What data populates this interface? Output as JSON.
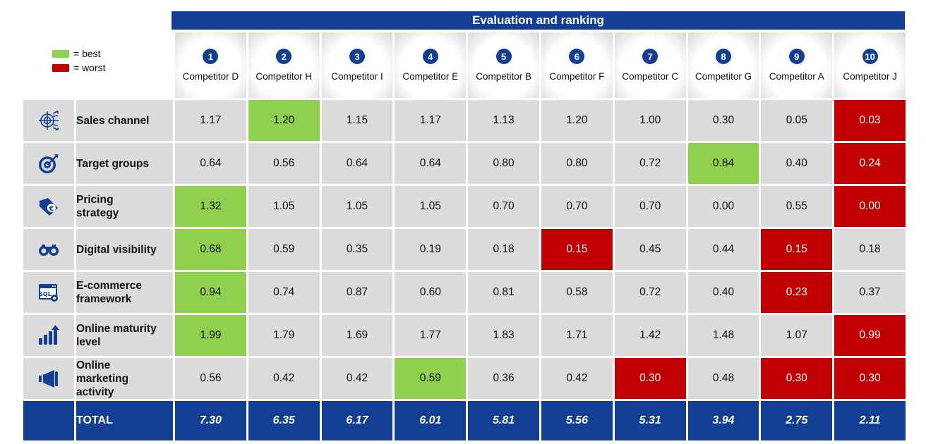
{
  "title": "Evaluation and ranking",
  "legend": {
    "best_label": "= best",
    "worst_label": "= worst",
    "best_color": "#8fd04f",
    "worst_color": "#c00000"
  },
  "colors": {
    "header_blue": "#123f94",
    "cell_gray": "#dcdcdc"
  },
  "chart_data": {
    "type": "table",
    "title": "Evaluation and ranking",
    "columns": [
      {
        "rank": "1",
        "name": "Competitor D"
      },
      {
        "rank": "2",
        "name": "Competitor H"
      },
      {
        "rank": "3",
        "name": "Competitor I"
      },
      {
        "rank": "4",
        "name": "Competitor E"
      },
      {
        "rank": "5",
        "name": "Competitor B"
      },
      {
        "rank": "6",
        "name": "Competitor F"
      },
      {
        "rank": "7",
        "name": "Competitor C"
      },
      {
        "rank": "8",
        "name": "Competitor G"
      },
      {
        "rank": "9",
        "name": "Competitor A"
      },
      {
        "rank": "10",
        "name": "Competitor J"
      }
    ],
    "rows": [
      {
        "label": "Sales channel",
        "icon": "crosshair-arrows-icon",
        "values": [
          "1.17",
          "1.20",
          "1.15",
          "1.17",
          "1.13",
          "1.20",
          "1.00",
          "0.30",
          "0.05",
          "0.03"
        ],
        "status": [
          "",
          "best",
          "",
          "",
          "",
          "",
          "",
          "",
          "",
          "worst"
        ]
      },
      {
        "label": "Target groups",
        "icon": "target-icon",
        "values": [
          "0.64",
          "0.56",
          "0.64",
          "0.64",
          "0.80",
          "0.80",
          "0.72",
          "0.84",
          "0.40",
          "0.24"
        ],
        "status": [
          "",
          "",
          "",
          "",
          "",
          "",
          "",
          "best",
          "",
          "worst"
        ]
      },
      {
        "label": "Pricing strategy",
        "icon": "euro-tag-icon",
        "values": [
          "1.32",
          "1.05",
          "1.05",
          "1.05",
          "0.70",
          "0.70",
          "0.70",
          "0.00",
          "0.55",
          "0.00"
        ],
        "status": [
          "best",
          "",
          "",
          "",
          "",
          "",
          "",
          "",
          "",
          "worst"
        ]
      },
      {
        "label": "Digital visibility",
        "icon": "binoculars-icon",
        "values": [
          "0.68",
          "0.59",
          "0.35",
          "0.19",
          "0.18",
          "0.15",
          "0.45",
          "0.44",
          "0.15",
          "0.18"
        ],
        "status": [
          "best",
          "",
          "",
          "",
          "",
          "worst",
          "",
          "",
          "worst",
          ""
        ]
      },
      {
        "label": "E-commerce framework",
        "icon": "sql-window-icon",
        "values": [
          "0.94",
          "0.74",
          "0.87",
          "0.60",
          "0.81",
          "0.58",
          "0.72",
          "0.40",
          "0.23",
          "0.37"
        ],
        "status": [
          "best",
          "",
          "",
          "",
          "",
          "",
          "",
          "",
          "worst",
          ""
        ]
      },
      {
        "label": "Online maturity level",
        "icon": "growth-bars-icon",
        "values": [
          "1.99",
          "1.79",
          "1.69",
          "1.77",
          "1.83",
          "1.71",
          "1.42",
          "1.48",
          "1.07",
          "0.99"
        ],
        "status": [
          "best",
          "",
          "",
          "",
          "",
          "",
          "",
          "",
          "",
          "worst"
        ]
      },
      {
        "label": "Online marketing activity",
        "icon": "megaphone-icon",
        "values": [
          "0.56",
          "0.42",
          "0.42",
          "0.59",
          "0.36",
          "0.42",
          "0.30",
          "0.48",
          "0.30",
          "0.30"
        ],
        "status": [
          "",
          "",
          "",
          "best",
          "",
          "",
          "worst",
          "",
          "worst",
          "worst"
        ]
      }
    ],
    "total": {
      "label": "TOTAL",
      "values": [
        "7.30",
        "6.35",
        "6.17",
        "6.01",
        "5.81",
        "5.56",
        "5.31",
        "3.94",
        "2.75",
        "2.11"
      ]
    }
  }
}
